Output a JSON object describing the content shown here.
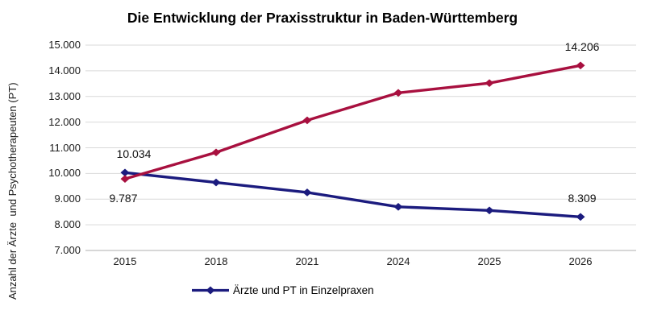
{
  "chart_data": {
    "type": "line",
    "title": "Die Entwicklung der Praxisstruktur in Baden-Württemberg",
    "ylabel": "Anzahl der Ärzte  und Psychotherapeuten (PT)",
    "xlabel": "",
    "categories": [
      "2015",
      "2018",
      "2021",
      "2024",
      "2025",
      "2026"
    ],
    "ylim": [
      7000,
      15000
    ],
    "grid": true,
    "legend_position": "bottom",
    "grid_color": "#d9d9d9",
    "axis_color": "#bfbfbf",
    "yticks": [
      [
        15000,
        "15.000"
      ],
      [
        14000,
        "14.000"
      ],
      [
        13000,
        "13.000"
      ],
      [
        12000,
        "12.000"
      ],
      [
        11000,
        "11.000"
      ],
      [
        10000,
        "10.000"
      ],
      [
        9000,
        "9.000"
      ],
      [
        8000,
        "8.000"
      ],
      [
        7000,
        "7.000"
      ]
    ],
    "series": [
      {
        "name": "Ärzte und PT in Einzelpraxen",
        "color": "#1b1b7e",
        "marker": "diamond",
        "values": [
          10034,
          9650,
          9260,
          8700,
          8560,
          8309
        ],
        "point_labels": [
          {
            "i": 0,
            "text": "10.034",
            "pos": "above"
          },
          {
            "i": 5,
            "text": "8.309",
            "pos": "above"
          }
        ]
      },
      {
        "name": "",
        "color": "#a8103f",
        "marker": "diamond",
        "values": [
          9787,
          10820,
          12070,
          13140,
          13520,
          14206
        ],
        "point_labels": [
          {
            "i": 0,
            "text": "9.787",
            "pos": "below"
          },
          {
            "i": 5,
            "text": "14.206",
            "pos": "above"
          }
        ]
      }
    ],
    "legend": [
      {
        "label": "Ärzte und PT in Einzelpraxen",
        "series": 0
      }
    ]
  }
}
